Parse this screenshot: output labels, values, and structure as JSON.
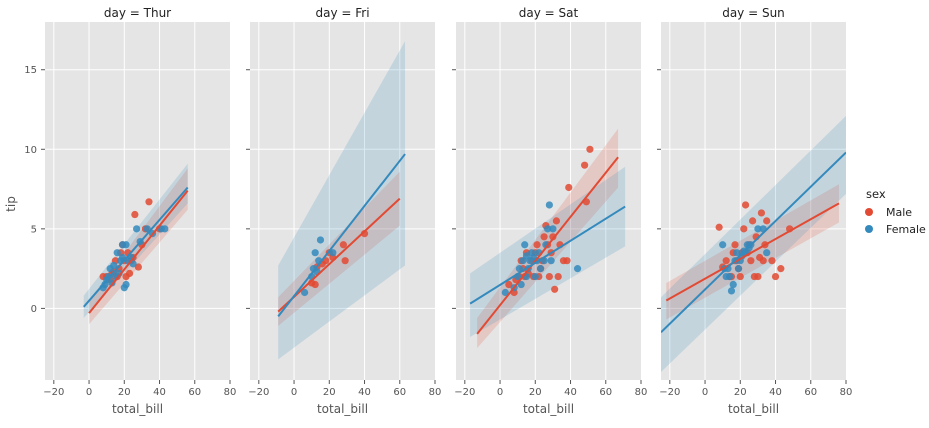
{
  "chart_data": {
    "type": "scatter",
    "facet_titles": [
      "day = Thur",
      "day = Fri",
      "day = Sat",
      "day = Sun"
    ],
    "xlabel": "total_bill",
    "ylabel": "tip",
    "xlim": [
      -25,
      80
    ],
    "ylim": [
      -4.5,
      18
    ],
    "xticks": [
      -20,
      0,
      20,
      40,
      60,
      80
    ],
    "yticks": [
      0,
      5,
      10,
      15
    ],
    "legend": {
      "title": "sex",
      "placement": "right"
    },
    "colors": {
      "Male": "#E24A33",
      "Female": "#348ABD",
      "panel_bg": "#E5E5E5",
      "grid": "#FFFFFF"
    },
    "series": [
      {
        "name": "Male",
        "panels": [
          {
            "points": [
              [
                8,
                2.0
              ],
              [
                10,
                2.0
              ],
              [
                12,
                1.8
              ],
              [
                13,
                2.2
              ],
              [
                14,
                2.3
              ],
              [
                15,
                3.0
              ],
              [
                16,
                2.0
              ],
              [
                17,
                2.5
              ],
              [
                18,
                3.5
              ],
              [
                19,
                4.0
              ],
              [
                20,
                3.0
              ],
              [
                21,
                2.0
              ],
              [
                22,
                3.5
              ],
              [
                23,
                2.2
              ],
              [
                24,
                3.0
              ],
              [
                25,
                3.2
              ],
              [
                26,
                5.9
              ],
              [
                28,
                2.6
              ],
              [
                30,
                4.0
              ],
              [
                32,
                5.0
              ],
              [
                34,
                6.7
              ],
              [
                40,
                5.0
              ]
            ],
            "fit": {
              "x": [
                0,
                56
              ],
              "y": [
                -0.3,
                7.4
              ]
            },
            "ci_lo": [
              -1.0,
              6.2
            ],
            "ci_hi": [
              0.5,
              8.8
            ]
          },
          {
            "points": [
              [
                10,
                1.6
              ],
              [
                12,
                1.5
              ],
              [
                13,
                2.6
              ],
              [
                16,
                2.8
              ],
              [
                18,
                3.0
              ],
              [
                20,
                3.5
              ],
              [
                22,
                3.2
              ],
              [
                28,
                4.0
              ],
              [
                29,
                3.0
              ],
              [
                40,
                4.7
              ]
            ],
            "fit": {
              "x": [
                -9,
                60
              ],
              "y": [
                -0.2,
                6.9
              ]
            },
            "ci_lo": [
              -1.1,
              5.2
            ],
            "ci_hi": [
              0.7,
              8.6
            ]
          },
          {
            "points": [
              [
                5,
                1.5
              ],
              [
                8,
                1.0
              ],
              [
                9,
                1.8
              ],
              [
                11,
                2.0
              ],
              [
                12,
                3.0
              ],
              [
                13,
                2.5
              ],
              [
                14,
                2.0
              ],
              [
                15,
                3.5
              ],
              [
                16,
                2.2
              ],
              [
                18,
                3.0
              ],
              [
                19,
                2.0
              ],
              [
                20,
                3.5
              ],
              [
                21,
                4.0
              ],
              [
                22,
                2.0
              ],
              [
                23,
                2.5
              ],
              [
                24,
                3.0
              ],
              [
                25,
                4.5
              ],
              [
                26,
                5.2
              ],
              [
                27,
                4.0
              ],
              [
                28,
                2.0
              ],
              [
                29,
                3.5
              ],
              [
                30,
                4.5
              ],
              [
                32,
                5.5
              ],
              [
                33,
                2.0
              ],
              [
                34,
                4.0
              ],
              [
                36,
                3.0
              ],
              [
                38,
                3.0
              ],
              [
                39,
                7.6
              ],
              [
                48,
                9.0
              ],
              [
                49,
                6.7
              ],
              [
                51,
                10.0
              ],
              [
                31,
                1.2
              ]
            ],
            "fit": {
              "x": [
                -13,
                67
              ],
              "y": [
                -1.6,
                9.5
              ]
            },
            "ci_lo": [
              -2.5,
              7.6
            ],
            "ci_hi": [
              -0.6,
              11.3
            ]
          },
          {
            "points": [
              [
                8,
                5.1
              ],
              [
                10,
                2.6
              ],
              [
                12,
                3.0
              ],
              [
                14,
                2.0
              ],
              [
                15,
                2.0
              ],
              [
                16,
                3.5
              ],
              [
                17,
                4.0
              ],
              [
                18,
                3.0
              ],
              [
                19,
                2.5
              ],
              [
                20,
                2.0
              ],
              [
                21,
                3.5
              ],
              [
                22,
                5.0
              ],
              [
                23,
                6.5
              ],
              [
                24,
                3.5
              ],
              [
                25,
                4.0
              ],
              [
                26,
                3.0
              ],
              [
                27,
                5.5
              ],
              [
                28,
                2.0
              ],
              [
                29,
                4.5
              ],
              [
                30,
                2.0
              ],
              [
                31,
                3.2
              ],
              [
                32,
                6.0
              ],
              [
                33,
                3.0
              ],
              [
                34,
                4.0
              ],
              [
                35,
                5.5
              ],
              [
                38,
                3.0
              ],
              [
                40,
                2.0
              ],
              [
                43,
                2.5
              ],
              [
                48,
                5.0
              ]
            ],
            "fit": {
              "x": [
                -22,
                76
              ],
              "y": [
                0.5,
                6.6
              ]
            },
            "ci_lo": [
              -0.7,
              5.4
            ],
            "ci_hi": [
              1.6,
              7.8
            ]
          }
        ]
      },
      {
        "name": "Female",
        "panels": [
          {
            "points": [
              [
                8,
                1.3
              ],
              [
                9,
                1.5
              ],
              [
                10,
                1.8
              ],
              [
                11,
                2.0
              ],
              [
                12,
                2.5
              ],
              [
                13,
                1.6
              ],
              [
                14,
                2.7
              ],
              [
                15,
                2.0
              ],
              [
                16,
                3.5
              ],
              [
                17,
                2.2
              ],
              [
                18,
                3.0
              ],
              [
                19,
                4.0
              ],
              [
                20,
                1.3
              ],
              [
                21,
                1.5
              ],
              [
                22,
                3.0
              ],
              [
                24,
                3.2
              ],
              [
                25,
                2.8
              ],
              [
                27,
                5.0
              ],
              [
                29,
                4.2
              ],
              [
                33,
                5.0
              ],
              [
                36,
                4.7
              ],
              [
                41,
                5.0
              ],
              [
                43,
                5.0
              ],
              [
                19,
                3.2
              ],
              [
                21,
                4.0
              ]
            ],
            "fit": {
              "x": [
                -3,
                56
              ],
              "y": [
                0.1,
                7.6
              ]
            },
            "ci_lo": [
              -0.6,
              6.6
            ],
            "ci_hi": [
              0.8,
              9.1
            ]
          },
          {
            "points": [
              [
                6,
                1.0
              ],
              [
                10,
                2.0
              ],
              [
                11,
                2.5
              ],
              [
                12,
                3.5
              ],
              [
                13,
                2.3
              ],
              [
                14,
                3.0
              ],
              [
                15,
                4.3
              ],
              [
                22,
                3.5
              ]
            ],
            "fit": {
              "x": [
                -9,
                63
              ],
              "y": [
                -0.5,
                9.7
              ]
            },
            "ci_lo": [
              -3.2,
              2.7
            ],
            "ci_hi": [
              2.7,
              16.8
            ]
          },
          {
            "points": [
              [
                3,
                1.0
              ],
              [
                8,
                1.3
              ],
              [
                10,
                2.0
              ],
              [
                11,
                2.5
              ],
              [
                12,
                1.5
              ],
              [
                13,
                3.0
              ],
              [
                14,
                4.0
              ],
              [
                15,
                2.0
              ],
              [
                16,
                2.5
              ],
              [
                17,
                3.0
              ],
              [
                18,
                3.5
              ],
              [
                19,
                3.2
              ],
              [
                20,
                2.0
              ],
              [
                21,
                3.0
              ],
              [
                22,
                3.5
              ],
              [
                23,
                2.5
              ],
              [
                25,
                3.0
              ],
              [
                26,
                4.0
              ],
              [
                27,
                5.0
              ],
              [
                28,
                6.5
              ],
              [
                29,
                3.0
              ],
              [
                30,
                5.0
              ],
              [
                44,
                2.5
              ],
              [
                15,
                3.3
              ]
            ],
            "fit": {
              "x": [
                -17,
                71
              ],
              "y": [
                0.3,
                6.4
              ]
            },
            "ci_lo": [
              -1.8,
              3.9
            ],
            "ci_hi": [
              2.2,
              8.9
            ]
          },
          {
            "points": [
              [
                10,
                4.0
              ],
              [
                11,
                2.5
              ],
              [
                12,
                2.0
              ],
              [
                13,
                2.5
              ],
              [
                14,
                2.0
              ],
              [
                15,
                1.1
              ],
              [
                16,
                1.5
              ],
              [
                17,
                3.0
              ],
              [
                18,
                3.5
              ],
              [
                19,
                2.5
              ],
              [
                20,
                3.0
              ],
              [
                21,
                3.3
              ],
              [
                22,
                3.6
              ],
              [
                23,
                3.5
              ],
              [
                24,
                4.0
              ],
              [
                25,
                3.8
              ],
              [
                26,
                4.0
              ],
              [
                30,
                5.0
              ],
              [
                33,
                5.0
              ],
              [
                35,
                3.5
              ]
            ],
            "fit": {
              "x": [
                -25,
                80
              ],
              "y": [
                -1.5,
                9.8
              ]
            },
            "ci_lo": [
              -4.0,
              7.2
            ],
            "ci_hi": [
              0.7,
              12.1
            ]
          }
        ]
      }
    ]
  }
}
